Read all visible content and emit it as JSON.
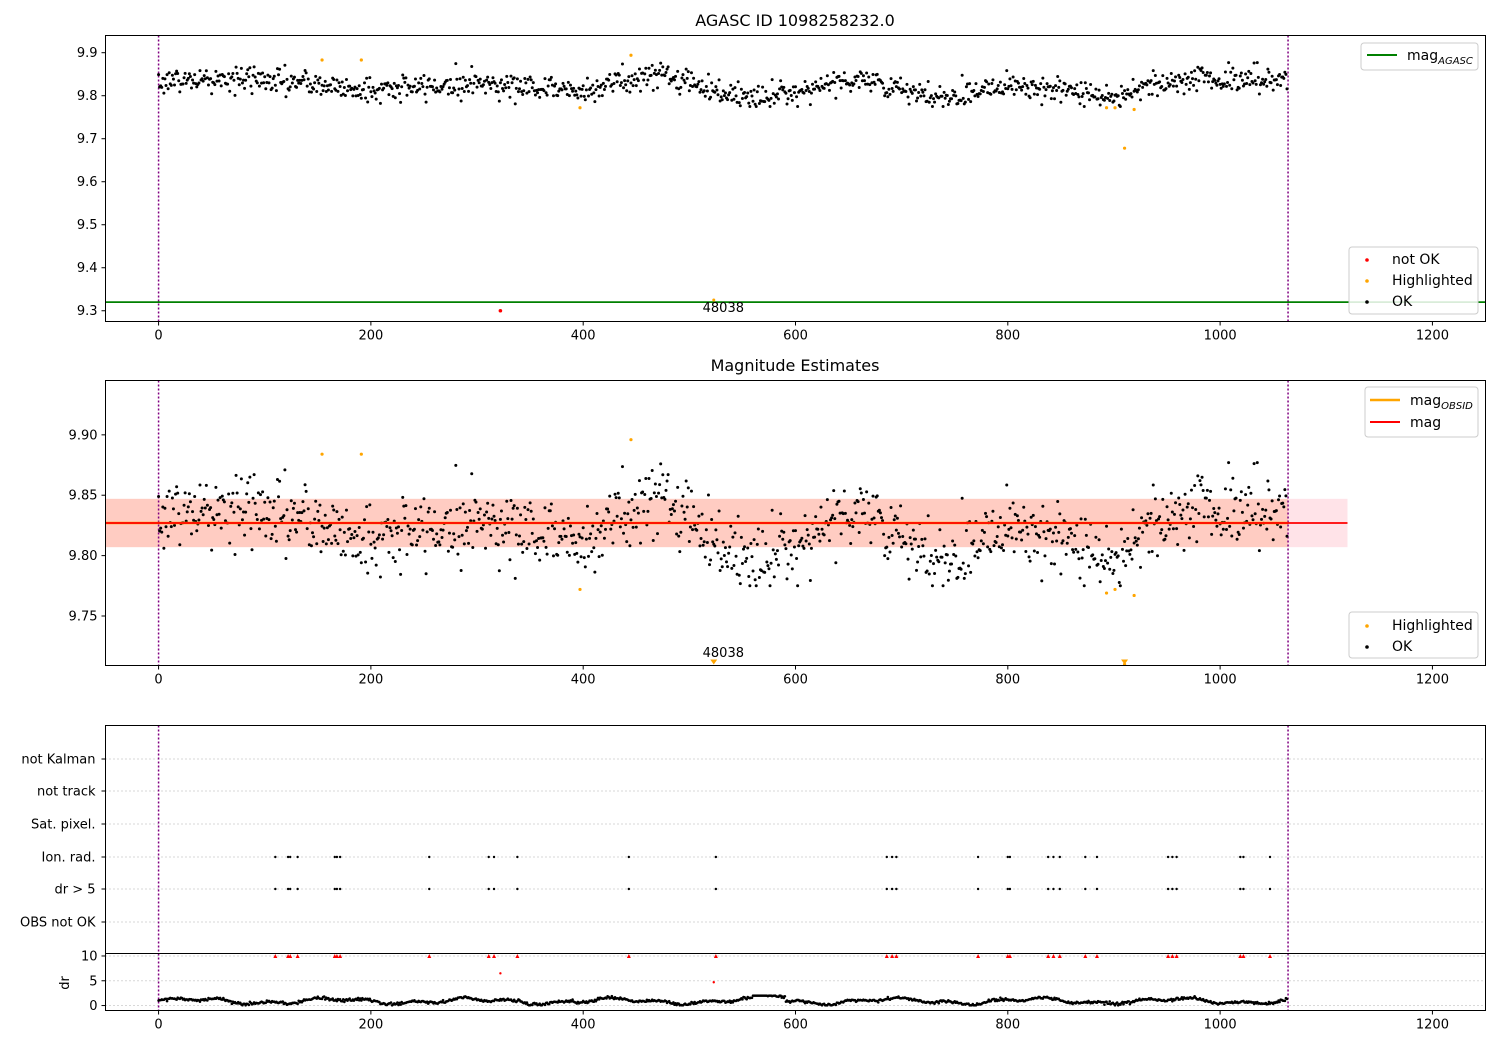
{
  "colors": {
    "ok": "#000000",
    "not_ok": "#ff0000",
    "highlighted": "#ffa500",
    "mag_agasc_line": "#008000",
    "mag_line": "#ff0000",
    "mag_obsid_line": "#ffa500",
    "band_outer": "#ffc0cb",
    "band_inner": "#ffa07a",
    "obs_boundary": "#800080",
    "grid": "#b0b0b0",
    "flag_dot": "#000000",
    "dr_flag": "#ff0000"
  },
  "chart_data": [
    {
      "type": "scatter",
      "title": "AGASC ID 1098258232.0",
      "xlim": [
        -50,
        1250
      ],
      "ylim": [
        9.275,
        9.94
      ],
      "xticks": [
        0,
        200,
        400,
        600,
        800,
        1000,
        1200
      ],
      "yticks": [
        9.3,
        9.4,
        9.5,
        9.6,
        9.7,
        9.8,
        9.9
      ],
      "n_points": 1064,
      "ok_trend": {
        "x": [
          0,
          100,
          200,
          300,
          400,
          470,
          560,
          660,
          730,
          800,
          890,
          960,
          1064
        ],
        "y": [
          9.835,
          9.838,
          9.812,
          9.83,
          9.812,
          9.852,
          9.79,
          9.842,
          9.79,
          9.83,
          9.795,
          9.84,
          9.835
        ]
      },
      "ok_scatter_sd": 0.015,
      "highlighted_points": {
        "x": [
          154,
          191,
          397,
          445,
          893,
          901,
          910,
          919
        ],
        "y": [
          9.883,
          9.883,
          9.772,
          9.894,
          9.772,
          9.772,
          9.678,
          9.768
        ]
      },
      "not_ok_points": {
        "x": [
          322
        ],
        "y": [
          9.3
        ]
      },
      "extra_points": {
        "x": [
          523
        ],
        "y": [
          9.325
        ]
      },
      "mag_agasc": 9.32,
      "obs_boundaries": [
        0,
        1064
      ],
      "obs_label": {
        "x": 532,
        "text": "48038"
      },
      "legends": [
        {
          "position": "top-right",
          "entries": [
            {
              "label": "mag",
              "sub": "AGASC",
              "kind": "line",
              "color_key": "mag_agasc_line"
            }
          ]
        },
        {
          "position": "lower-right",
          "entries": [
            {
              "label": "not OK",
              "kind": "dot",
              "color_key": "not_ok"
            },
            {
              "label": "Highlighted",
              "kind": "dot",
              "color_key": "highlighted"
            },
            {
              "label": "OK",
              "kind": "dot",
              "color_key": "ok"
            }
          ]
        }
      ]
    },
    {
      "type": "scatter",
      "title": "Magnitude Estimates",
      "xlim": [
        -50,
        1250
      ],
      "ylim": [
        9.709,
        9.945
      ],
      "xticks": [
        0,
        200,
        400,
        600,
        800,
        1000,
        1200
      ],
      "yticks": [
        9.75,
        9.8,
        9.85,
        9.9
      ],
      "ytick_labels": [
        "9.75",
        "9.80",
        "9.85",
        "9.90"
      ],
      "mag": 9.827,
      "mag_sd": 0.02,
      "band_x": [
        -50,
        1120
      ],
      "obs_boundaries": [
        0,
        1064
      ],
      "highlighted_points": {
        "x": [
          154,
          191,
          397,
          445,
          893,
          901,
          910,
          919
        ],
        "y": [
          9.884,
          9.884,
          9.772,
          9.896,
          9.769,
          9.772,
          9.71,
          9.767
        ]
      },
      "below_markers": {
        "x": [
          523,
          910
        ]
      },
      "obs_label": {
        "x": 532,
        "text": "48038"
      },
      "legends": [
        {
          "position": "top-right",
          "entries": [
            {
              "label": "mag",
              "sub": "OBSID",
              "kind": "line",
              "color_key": "mag_obsid_line"
            },
            {
              "label": "mag",
              "kind": "line",
              "color_key": "mag_line"
            }
          ]
        },
        {
          "position": "lower-right",
          "entries": [
            {
              "label": "Highlighted",
              "kind": "dot",
              "color_key": "highlighted"
            },
            {
              "label": "OK",
              "kind": "dot",
              "color_key": "ok"
            }
          ]
        }
      ]
    },
    {
      "type": "scatter",
      "title": "",
      "xlim": [
        -50,
        1250
      ],
      "xticks": [
        0,
        200,
        400,
        600,
        800,
        1000,
        1200
      ],
      "flag_rows": [
        "not Kalman",
        "not track",
        "Sat. pixel.",
        "Ion. rad.",
        "dr > 5",
        "OBS not OK"
      ],
      "flagged_x": [
        110,
        122,
        124,
        131,
        166,
        168,
        171,
        255,
        311,
        316,
        338,
        443,
        525,
        686,
        691,
        695,
        772,
        800,
        802,
        838,
        843,
        849,
        873,
        884,
        951,
        955,
        959,
        1019,
        1022,
        1047
      ],
      "flagged_rows": [
        "Ion. rad.",
        "dr > 5"
      ],
      "dr_panel": {
        "ylabel": "dr",
        "ylim": [
          -1,
          10.5
        ],
        "yticks": [
          0,
          5,
          10
        ],
        "clipped_value": 10,
        "extra_points": {
          "x": [
            322,
            523
          ],
          "y": [
            6.5,
            4.7
          ]
        },
        "baseline_mean": 0.9
      },
      "obs_boundaries": [
        0,
        1064
      ]
    }
  ]
}
